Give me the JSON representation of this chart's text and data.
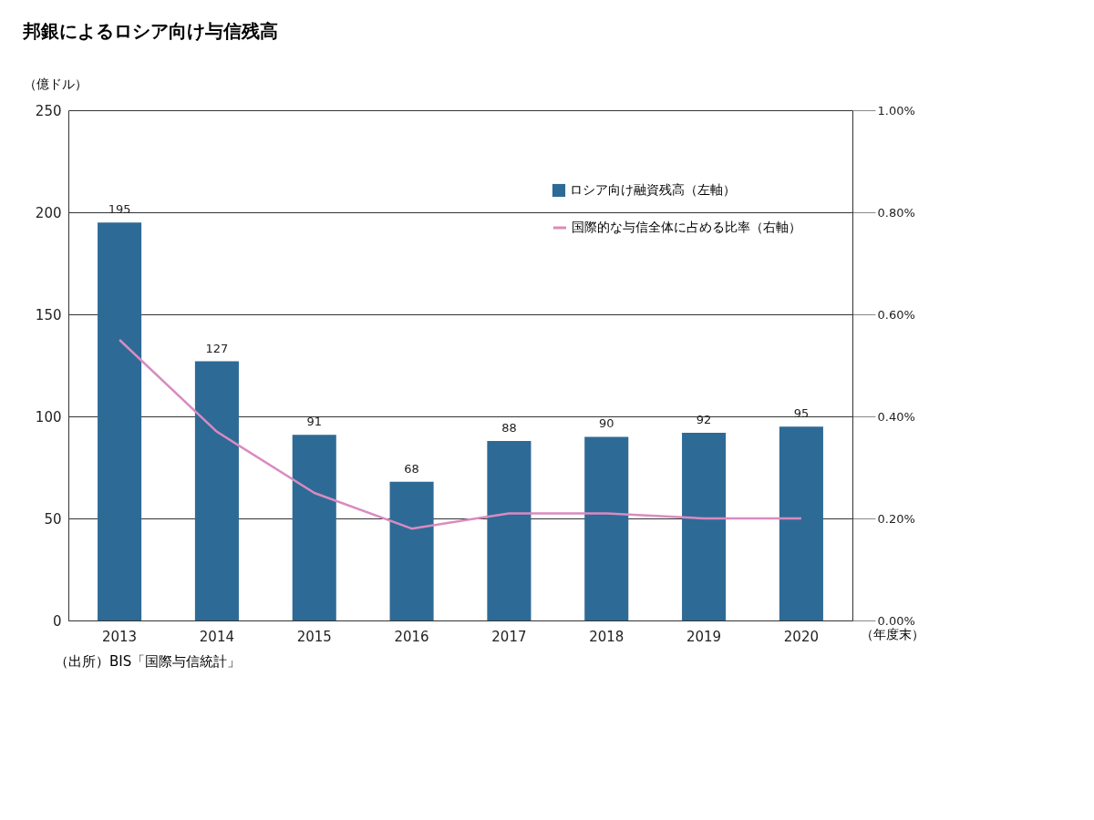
{
  "chart_data": {
    "type": "bar",
    "title": "邦銀によるロシア向け与信残高",
    "categories": [
      "2013",
      "2014",
      "2015",
      "2016",
      "2017",
      "2018",
      "2019",
      "2020"
    ],
    "xlabel": "（年度末）",
    "ylabel": "（億ドル）",
    "series": [
      {
        "name": "ロシア向け融資残高（左軸）",
        "color": "#2e6a96",
        "values": [
          195,
          127,
          91,
          68,
          88,
          90,
          92,
          95
        ],
        "value_labels": [
          "195",
          "127",
          "91",
          "68",
          "88",
          "90",
          "92",
          "95"
        ]
      },
      {
        "name": "国際的な与信全体に占める比率（右軸）",
        "type": "line",
        "axis": "y2",
        "color": "#d98bc0",
        "values": [
          0.55,
          0.37,
          0.25,
          0.18,
          0.21,
          0.21,
          0.2,
          0.2
        ]
      }
    ],
    "ylim": [
      0,
      250
    ],
    "yticks": [
      0,
      50,
      100,
      150,
      200,
      250
    ],
    "y2lim": [
      0,
      1
    ],
    "y2ticks": [
      {
        "value": 0,
        "label": "0.00%"
      },
      {
        "value": 0.2,
        "label": "0.20%"
      },
      {
        "value": 0.4,
        "label": "0.40%"
      },
      {
        "value": 0.6,
        "label": "0.60%"
      },
      {
        "value": 0.8,
        "label": "0.80%"
      },
      {
        "value": 1,
        "label": "1.00%"
      }
    ],
    "grid": "y",
    "legend": "top right",
    "annotations": [
      "（出所）BIS「国際与信統計」"
    ]
  }
}
